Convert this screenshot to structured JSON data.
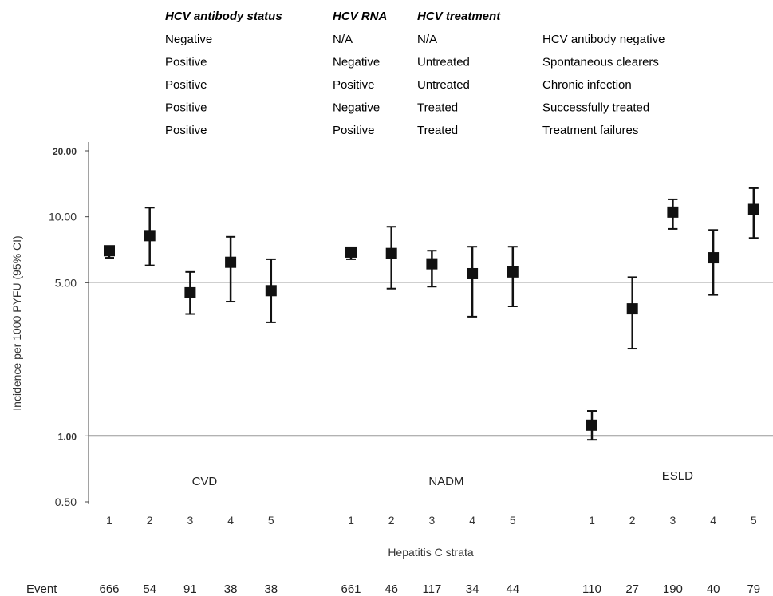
{
  "chart_data": {
    "type": "scatter",
    "title": "",
    "ylabel": "Incidence per 1000 PYFU (95% CI)",
    "xlabel": "Hepatitis C strata",
    "y_scale": "log",
    "ylim": [
      0.5,
      20
    ],
    "y_ticks": [
      {
        "value": 0.5,
        "label": "0.50",
        "bold": false
      },
      {
        "value": 1,
        "label": "1.00",
        "bold": true
      },
      {
        "value": 5,
        "label": "5.00",
        "bold": false
      },
      {
        "value": 10,
        "label": "10.00",
        "bold": false
      },
      {
        "value": 20,
        "label": "20.00",
        "bold": true
      }
    ],
    "gridlines_at": [
      5
    ],
    "reference_line_at": 1,
    "legend_headers": [
      "HCV antibody status",
      "HCV RNA",
      "HCV treatment",
      ""
    ],
    "legend_rows": [
      [
        "Negative",
        "N/A",
        "N/A",
        "HCV antibody negative"
      ],
      [
        "Positive",
        "Negative",
        "Untreated",
        "Spontaneous clearers"
      ],
      [
        "Positive",
        "Positive",
        "Untreated",
        "Chronic infection"
      ],
      [
        "Positive",
        "Negative",
        "Treated",
        "Successfully treated"
      ],
      [
        "Positive",
        "Positive",
        "Treated",
        "Treatment failures"
      ]
    ],
    "event_label": "Event",
    "groups": [
      {
        "name": "CVD",
        "points": [
          {
            "stratum": "1",
            "est": 7.0,
            "lo": 6.5,
            "hi": 7.3,
            "events": "666"
          },
          {
            "stratum": "2",
            "est": 8.2,
            "lo": 6.0,
            "hi": 11.0,
            "events": "54"
          },
          {
            "stratum": "3",
            "est": 4.5,
            "lo": 3.6,
            "hi": 5.6,
            "events": "91"
          },
          {
            "stratum": "4",
            "est": 6.2,
            "lo": 4.1,
            "hi": 8.1,
            "events": "38"
          },
          {
            "stratum": "5",
            "est": 4.6,
            "lo": 3.3,
            "hi": 6.4,
            "events": "38"
          }
        ]
      },
      {
        "name": "NADM",
        "points": [
          {
            "stratum": "1",
            "est": 6.9,
            "lo": 6.4,
            "hi": 7.2,
            "events": "661"
          },
          {
            "stratum": "2",
            "est": 6.8,
            "lo": 4.7,
            "hi": 9.0,
            "events": "46"
          },
          {
            "stratum": "3",
            "est": 6.1,
            "lo": 4.8,
            "hi": 7.0,
            "events": "117"
          },
          {
            "stratum": "4",
            "est": 5.5,
            "lo": 3.5,
            "hi": 7.3,
            "events": "34"
          },
          {
            "stratum": "5",
            "est": 5.6,
            "lo": 3.9,
            "hi": 7.3,
            "events": "44"
          }
        ]
      },
      {
        "name": "ESLD",
        "points": [
          {
            "stratum": "1",
            "est": 1.12,
            "lo": 0.96,
            "hi": 1.3,
            "events": "110"
          },
          {
            "stratum": "2",
            "est": 3.8,
            "lo": 2.5,
            "hi": 5.3,
            "events": "27"
          },
          {
            "stratum": "3",
            "est": 10.5,
            "lo": 8.8,
            "hi": 12.0,
            "events": "190"
          },
          {
            "stratum": "4",
            "est": 6.5,
            "lo": 4.4,
            "hi": 8.7,
            "events": "40"
          },
          {
            "stratum": "5",
            "est": 10.8,
            "lo": 8.0,
            "hi": 13.5,
            "events": "79"
          }
        ]
      }
    ]
  }
}
